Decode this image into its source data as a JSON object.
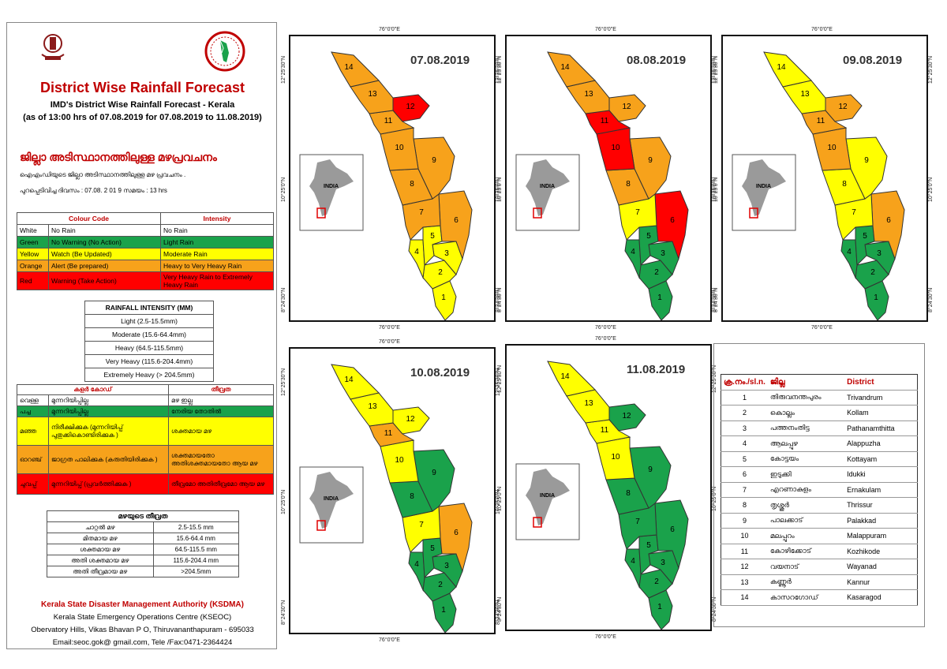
{
  "header": {
    "title": "District Wise Rainfall Forecast",
    "subtitle1": "IMD's District Wise Rainfall Forecast - Kerala",
    "subtitle2": "(as of 13:00 hrs of 07.08.2019  for 07.08.2019 to 11.08.2019)",
    "mal_title": "ജില്ലാ അടിസ്ഥാനത്തിലുള്ള മഴപ്രവചനം",
    "mal_line1": "ഐഎംഡിയുടെ  ജില്ലാ  അടിസ്ഥാനത്തിലുള്ള  മഴ പ്രവചനം  .",
    "mal_line2": "പുറപ്പെടിവിച്ച  ദിവസം : 07.08. 2 01 9  സമയം : 13 hrs"
  },
  "colour_code": {
    "header_code": "Colour Code",
    "header_intensity": "Intensity",
    "rows": [
      {
        "colour": "White",
        "code": "No Rain",
        "intensity": "No Rain",
        "swatch": "#ffffff"
      },
      {
        "colour": "Green",
        "code": "No Warning (No Action)",
        "intensity": "Light Rain",
        "swatch": "#1aa24b"
      },
      {
        "colour": "Yellow",
        "code": "Watch (Be Updated)",
        "intensity": "Moderate Rain",
        "swatch": "#ffff00"
      },
      {
        "colour": "Orange",
        "code": "Alert (Be prepared)",
        "intensity": "Heavy to Very Heavy Rain",
        "swatch": "#f7a21b"
      },
      {
        "colour": "Red",
        "code": "Warning (Take Action)",
        "intensity": "Very Heavy Rain to Extremely Heavy Rain",
        "swatch": "#ff0000"
      }
    ]
  },
  "rainfall_intensity": {
    "header": "RAINFALL INTENSITY (MM)",
    "rows": [
      "Light (2.5-15.5mm)",
      "Moderate (15.6-64.4mm)",
      "Heavy (64.5-115.5mm)",
      "Very Heavy (115.6-204.4mm)",
      "Extremely Heavy (> 204.5mm)"
    ]
  },
  "mal_colour_code": {
    "header_code": "കളർ കോഡ്",
    "header_intensity": "തീവ്രത",
    "rows": [
      {
        "colour": "വെള്ള",
        "code": "മുന്നറിയിപ്പില്ല",
        "intensity": "മഴ ഇല്ല"
      },
      {
        "colour": "പച്ച",
        "code": "മുന്നറിയിപ്പില്ല",
        "intensity": "നേരിയ തോതിൽ"
      },
      {
        "colour": "മഞ്ഞ",
        "code": "നിരീക്ഷിക്കുക (മുന്നറിയിപ്പ് പുതുക്കികൊണ്ടിരിക്കുക )",
        "intensity": "ശക്തമായ മഴ"
      },
      {
        "colour": "ഓറഞ്ച്",
        "code": "ജാഗ്രത പാലിക്കുക (കരുതിയിരിക്കുക )",
        "intensity": "ശക്തമായതോ അതിശക്തമായതോ ആയ മഴ"
      },
      {
        "colour": "ചുവപ്പ്",
        "code": "മുന്നറിയിപ്പ് (പ്രവർത്തിക്കുക )",
        "intensity": "തീവ്രമോ അതിതീവ്രമോ ആയ മഴ"
      }
    ]
  },
  "mal_intensity": {
    "header": "മഴയുടെ തീവ്രത",
    "rows": [
      {
        "label": "ചാറ്റൽ മഴ",
        "range": "2.5-15.5 mm"
      },
      {
        "label": "മിതമായ മഴ",
        "range": "15.6-64.4 mm"
      },
      {
        "label": "ശക്തമായ മഴ",
        "range": "64.5-115.5 mm"
      },
      {
        "label": "അതി ശക്തമായ മഴ",
        "range": "115.6-204.4 mm"
      },
      {
        "label": "അതി തീവ്രമായ മഴ",
        "range": ">204.5mm"
      }
    ]
  },
  "footer": {
    "org": "Kerala State Disaster Management Authority (KSDMA)",
    "line1": "Kerala State Emergency Operations Centre (KSEOC)",
    "line2": "Obervatory Hills, Vikas Bhavan P O, Thiruvananthapuram - 695033",
    "line3": "Email:seoc.gok@ gmail.com, Tele /Fax:0471-2364424"
  },
  "maps": [
    {
      "date": "07.08.2019",
      "colors": [
        "yellow",
        "yellow",
        "yellow",
        "yellow",
        "yellow",
        "orange",
        "orange",
        "orange",
        "orange",
        "orange",
        "orange",
        "red",
        "orange",
        "orange"
      ]
    },
    {
      "date": "08.08.2019",
      "colors": [
        "green",
        "green",
        "green",
        "green",
        "green",
        "red",
        "yellow",
        "orange",
        "orange",
        "red",
        "red",
        "orange",
        "orange",
        "orange"
      ]
    },
    {
      "date": "09.08.2019",
      "colors": [
        "green",
        "green",
        "green",
        "green",
        "green",
        "orange",
        "yellow",
        "yellow",
        "yellow",
        "orange",
        "orange",
        "orange",
        "yellow",
        "yellow"
      ]
    },
    {
      "date": "10.08.2019",
      "colors": [
        "green",
        "green",
        "green",
        "green",
        "green",
        "orange",
        "yellow",
        "green",
        "green",
        "yellow",
        "orange",
        "yellow",
        "yellow",
        "yellow"
      ]
    },
    {
      "date": "11.08.2019",
      "colors": [
        "green",
        "green",
        "green",
        "green",
        "green",
        "green",
        "green",
        "green",
        "green",
        "yellow",
        "yellow",
        "green",
        "yellow",
        "yellow"
      ]
    }
  ],
  "map_labels": {
    "inset": "INDIA",
    "lon_top": "76°0'0\"E",
    "lon_bottom": "76°0'0\"E",
    "lat1": "12°25'30\"N",
    "lat2": "10°25'0\"N",
    "lat3": "8°24'30\"N",
    "lat_right1": "12°25'30\"N",
    "lat_right2": "10°25'0\"N",
    "lat_right3": "8°24'30\"N"
  },
  "districts": {
    "header_no": "ക്ര.നം./sl.n.",
    "header_mal": "ജില്ല",
    "header_en": "District",
    "rows": [
      {
        "no": "1",
        "mal": "തിരുവനന്തപുരം",
        "en": "Trivandrum"
      },
      {
        "no": "2",
        "mal": "കൊല്ലം",
        "en": "Kollam"
      },
      {
        "no": "3",
        "mal": "പത്തനംതിട്ട",
        "en": "Pathanamthitta"
      },
      {
        "no": "4",
        "mal": "ആലപ്പുഴ",
        "en": "Alappuzha"
      },
      {
        "no": "5",
        "mal": "കോട്ടയം",
        "en": "Kottayam"
      },
      {
        "no": "6",
        "mal": "ഇടുക്കി",
        "en": "Idukki"
      },
      {
        "no": "7",
        "mal": "എറണാകുളം",
        "en": "Ernakulam"
      },
      {
        "no": "8",
        "mal": "തൃശ്ശൂർ",
        "en": "Thrissur"
      },
      {
        "no": "9",
        "mal": "പാലക്കാട്",
        "en": "Palakkad"
      },
      {
        "no": "10",
        "mal": "മലപ്പുറം",
        "en": "Malappuram"
      },
      {
        "no": "11",
        "mal": "കോഴിക്കോട്",
        "en": "Kozhikode"
      },
      {
        "no": "12",
        "mal": "വയനാട്",
        "en": "Wayanad"
      },
      {
        "no": "13",
        "mal": "കണ്ണൂർ",
        "en": "Kannur"
      },
      {
        "no": "14",
        "mal": "കാസറഗോഡ്",
        "en": "Kasaragod"
      }
    ]
  },
  "colors": {
    "white": "#ffffff",
    "green": "#1aa24b",
    "yellow": "#ffff00",
    "orange": "#f7a21b",
    "red": "#ff0000",
    "title_red": "#c00000"
  }
}
